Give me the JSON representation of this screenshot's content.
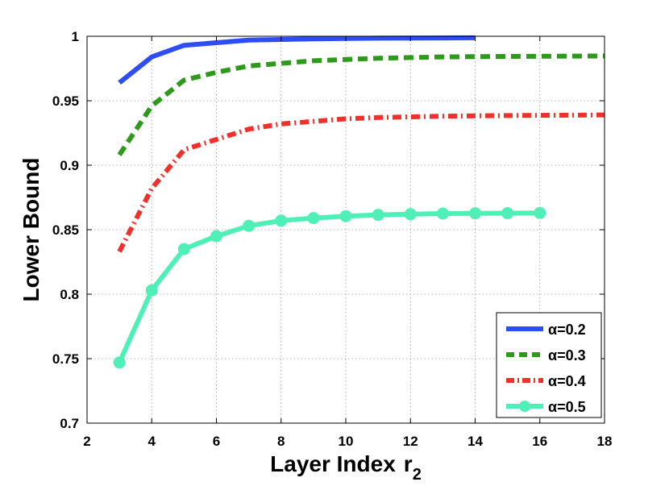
{
  "chart_data": {
    "type": "line",
    "title": "",
    "xlabel": "Layer Index",
    "xlabel_subscript": "r",
    "xlabel_sub": "2",
    "ylabel": "Lower Bound",
    "xlim": [
      2,
      18
    ],
    "ylim": [
      0.7,
      1.0
    ],
    "xticks": [
      2,
      4,
      6,
      8,
      10,
      12,
      14,
      16,
      18
    ],
    "xtick_labels": [
      "2",
      "4",
      "6",
      "8",
      "10",
      "12",
      "14",
      "16",
      "18"
    ],
    "yticks": [
      0.7,
      0.75,
      0.8,
      0.85,
      0.9,
      0.95,
      1.0
    ],
    "ytick_labels": [
      "0.7",
      "0.75",
      "0.8",
      "0.85",
      "0.9",
      "0.95",
      "1"
    ],
    "grid": true,
    "legend_position": "bottom-right",
    "series": [
      {
        "name": "α=0.2",
        "color": "#2d4ef5",
        "style": "solid",
        "marker": "none",
        "x": [
          3,
          4,
          5,
          6,
          7,
          8,
          9,
          10,
          11,
          12,
          13,
          14
        ],
        "y": [
          0.964,
          0.984,
          0.993,
          0.995,
          0.997,
          0.9975,
          0.998,
          0.9983,
          0.9985,
          0.9986,
          0.9987,
          0.9988
        ]
      },
      {
        "name": "α=0.3",
        "color": "#2e9a1c",
        "style": "dashed",
        "marker": "none",
        "x": [
          3,
          4,
          5,
          6,
          7,
          8,
          9,
          10,
          11,
          12,
          13,
          14,
          15,
          16,
          17,
          18
        ],
        "y": [
          0.908,
          0.946,
          0.966,
          0.972,
          0.977,
          0.979,
          0.981,
          0.982,
          0.983,
          0.9835,
          0.984,
          0.9842,
          0.9844,
          0.9845,
          0.9846,
          0.9847
        ]
      },
      {
        "name": "α=0.4",
        "color": "#f0302a",
        "style": "dashdot",
        "marker": "none",
        "x": [
          3,
          4,
          5,
          6,
          7,
          8,
          9,
          10,
          11,
          12,
          13,
          14,
          15,
          16,
          17,
          18
        ],
        "y": [
          0.833,
          0.882,
          0.912,
          0.92,
          0.928,
          0.932,
          0.934,
          0.936,
          0.937,
          0.9375,
          0.938,
          0.9383,
          0.9385,
          0.9387,
          0.9388,
          0.939
        ]
      },
      {
        "name": "α=0.5",
        "color": "#4ff0b8",
        "style": "solid",
        "marker": "circle",
        "x": [
          3,
          4,
          5,
          6,
          7,
          8,
          9,
          10,
          11,
          12,
          13,
          14,
          15,
          16
        ],
        "y": [
          0.747,
          0.803,
          0.835,
          0.845,
          0.853,
          0.857,
          0.859,
          0.8605,
          0.8615,
          0.862,
          0.8625,
          0.8627,
          0.8628,
          0.863
        ]
      }
    ]
  }
}
